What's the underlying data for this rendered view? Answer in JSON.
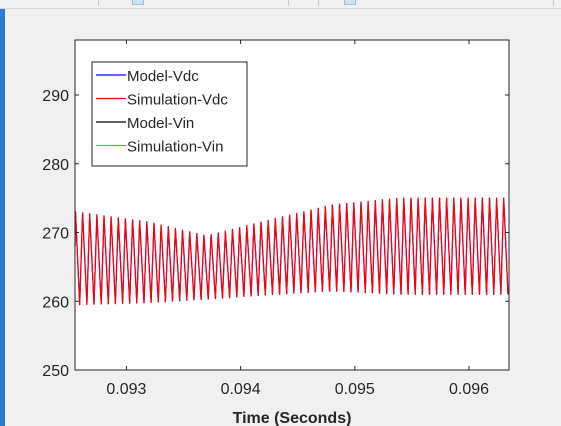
{
  "chart_data": {
    "type": "line",
    "title": "",
    "xlabel": "Time (Seconds)",
    "ylabel": "",
    "xlim": [
      0.09255,
      0.09635
    ],
    "ylim": [
      250,
      298
    ],
    "xticks": [
      "0.093",
      "0.094",
      "0.095",
      "0.096"
    ],
    "yticks": [
      "250",
      "260",
      "270",
      "280",
      "290"
    ],
    "grid": false,
    "legend_position": "top-left",
    "legend": [
      "Model-Vdc",
      "Simulation-Vdc",
      "Model-Vin",
      "Simulation-Vin"
    ],
    "series": [
      {
        "name": "Model-Vdc",
        "color": "#0000ff",
        "shape": "sawtooth",
        "period": 6.25e-05,
        "envelope": {
          "t": [
            0.09255,
            0.0932,
            0.0937,
            0.0943,
            0.0948,
            0.0954,
            0.09635
          ],
          "high": [
            273,
            271.5,
            269.5,
            272,
            274,
            275,
            275
          ],
          "low": [
            259.5,
            259.8,
            260.3,
            261,
            261.5,
            261,
            261
          ]
        }
      },
      {
        "name": "Simulation-Vdc",
        "color": "#ff0000",
        "shape": "sawtooth",
        "period": 6.25e-05,
        "envelope": {
          "t": [
            0.09255,
            0.0932,
            0.0937,
            0.0943,
            0.0948,
            0.0954,
            0.09635
          ],
          "high": [
            273,
            271.5,
            269.5,
            272,
            274,
            275,
            275
          ],
          "low": [
            259.5,
            259.8,
            260.3,
            261,
            261.5,
            261,
            261
          ]
        }
      },
      {
        "name": "Model-Vin",
        "color": "#000000",
        "values": []
      },
      {
        "name": "Simulation-Vin",
        "color": "#00ff00",
        "values": []
      }
    ]
  }
}
